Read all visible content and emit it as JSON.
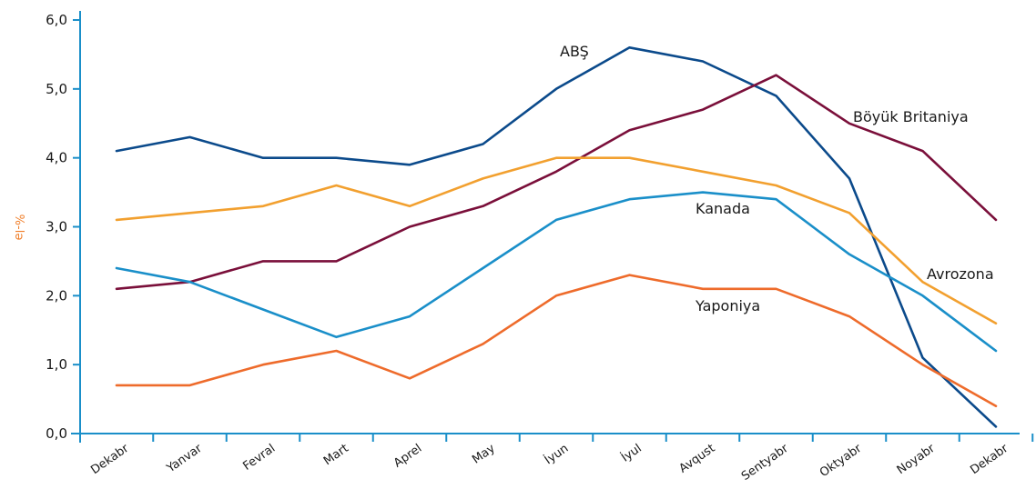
{
  "chart_data": {
    "type": "line",
    "title": "",
    "xlabel": "",
    "ylabel": "%-lə",
    "categories": [
      "Dekabr",
      "Yanvar",
      "Fevral",
      "Mart",
      "Aprel",
      "May",
      "İyun",
      "İyul",
      "Avqust",
      "Sentyabr",
      "Oktyabr",
      "Noyabr",
      "Dekabr"
    ],
    "y_ticks": [
      "0,0",
      "1,0",
      "2,0",
      "3,0",
      "4,0",
      "5,0",
      "6,0"
    ],
    "ylim": [
      0,
      6
    ],
    "grid": false,
    "series": [
      {
        "name": "ABŞ",
        "color": "#0b4a8b",
        "values": [
          4.1,
          4.3,
          4.0,
          4.0,
          3.9,
          4.2,
          5.0,
          5.6,
          5.4,
          4.9,
          3.7,
          1.1,
          0.1
        ]
      },
      {
        "name": "Böyük Britaniya",
        "color": "#7a0f3a",
        "values": [
          2.1,
          2.2,
          2.5,
          2.5,
          3.0,
          3.3,
          3.8,
          4.4,
          4.7,
          5.2,
          4.5,
          4.1,
          3.1
        ]
      },
      {
        "name": "Avrozona",
        "color": "#f2a02f",
        "values": [
          3.1,
          3.2,
          3.3,
          3.6,
          3.3,
          3.7,
          4.0,
          4.0,
          3.8,
          3.6,
          3.2,
          2.2,
          1.6
        ]
      },
      {
        "name": "Kanada",
        "color": "#1a8fc9",
        "values": [
          2.4,
          2.2,
          1.8,
          1.4,
          1.7,
          2.4,
          3.1,
          3.4,
          3.5,
          3.4,
          2.6,
          2.0,
          1.2
        ]
      },
      {
        "name": "Yaponiya",
        "color": "#ee6b2b",
        "values": [
          0.7,
          0.7,
          1.0,
          1.2,
          0.8,
          1.3,
          2.0,
          2.3,
          2.1,
          2.1,
          1.7,
          1.0,
          0.4
        ]
      }
    ]
  }
}
